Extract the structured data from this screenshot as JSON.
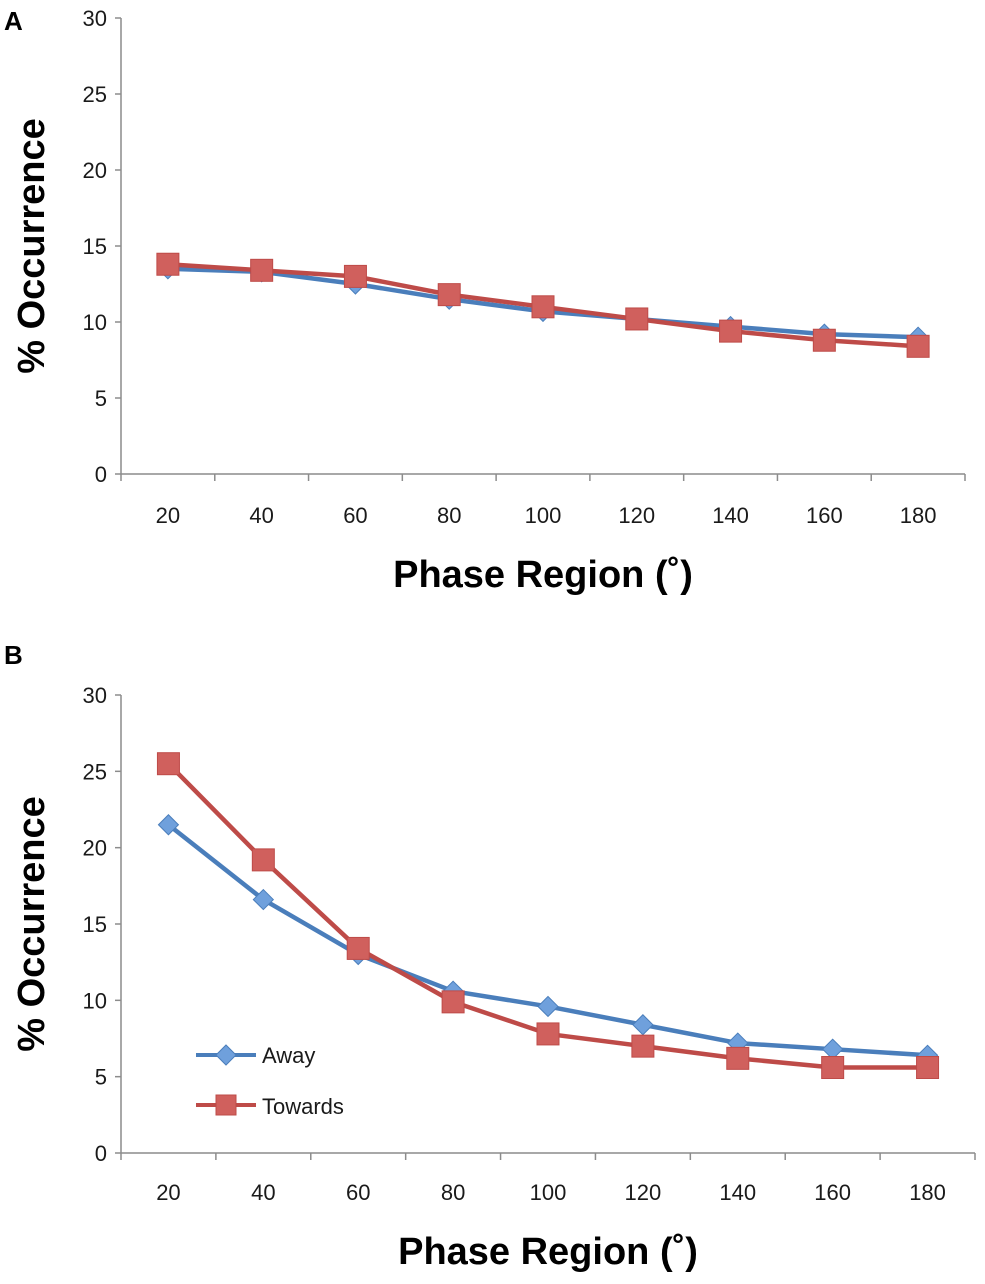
{
  "colors": {
    "away": "#4A7EBB",
    "away_marker": "#6FA0DC",
    "towards": "#BE4B48",
    "towards_marker": "#D0605D"
  },
  "chart_data": [
    {
      "panel": "A",
      "type": "line",
      "categories": [
        "20",
        "40",
        "60",
        "80",
        "100",
        "120",
        "140",
        "160",
        "180"
      ],
      "series": [
        {
          "name": "Away",
          "marker": "diamond",
          "values": [
            13.5,
            13.3,
            12.5,
            11.5,
            10.7,
            10.2,
            9.7,
            9.2,
            9.0
          ]
        },
        {
          "name": "Towards",
          "marker": "square",
          "values": [
            13.8,
            13.4,
            13.0,
            11.8,
            11.0,
            10.2,
            9.4,
            8.8,
            8.4
          ]
        }
      ],
      "xlabel": "Phase Region (˚)",
      "ylabel": "% Occurrence",
      "ylim": [
        0,
        30
      ],
      "yticks": [
        "0",
        "5",
        "10",
        "15",
        "20",
        "25",
        "30"
      ],
      "legend": null
    },
    {
      "panel": "B",
      "type": "line",
      "categories": [
        "20",
        "40",
        "60",
        "80",
        "100",
        "120",
        "140",
        "160",
        "180"
      ],
      "series": [
        {
          "name": "Away",
          "marker": "diamond",
          "values": [
            21.5,
            16.6,
            13.0,
            10.6,
            9.6,
            8.4,
            7.2,
            6.8,
            6.4
          ]
        },
        {
          "name": "Towards",
          "marker": "square",
          "values": [
            25.5,
            19.2,
            13.4,
            9.9,
            7.8,
            7.0,
            6.2,
            5.6,
            5.6
          ]
        }
      ],
      "xlabel": "Phase Region (˚)",
      "ylabel": "% Occurrence",
      "ylim": [
        0,
        30
      ],
      "yticks": [
        "0",
        "5",
        "10",
        "15",
        "20",
        "25",
        "30"
      ],
      "legend": {
        "position": "bottom-left",
        "entries": [
          "Away",
          "Towards"
        ]
      }
    }
  ]
}
